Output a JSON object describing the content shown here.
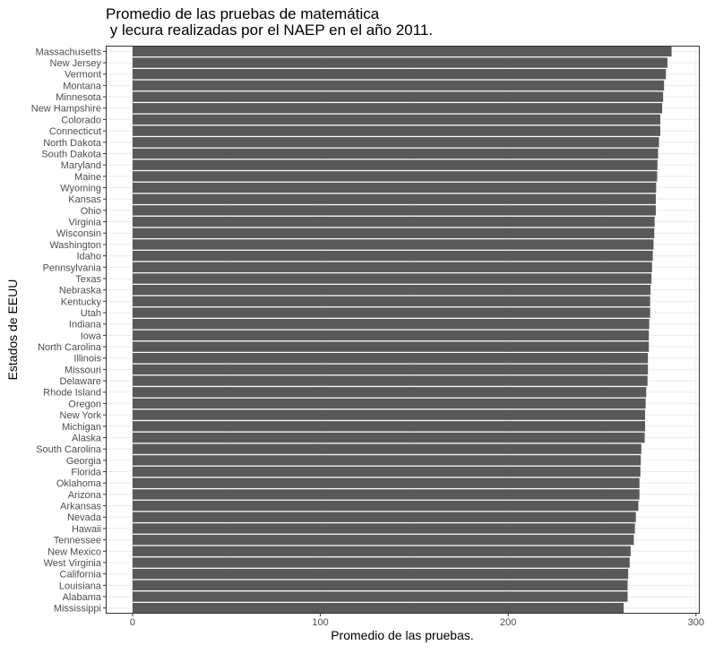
{
  "chart_data": {
    "type": "bar",
    "orientation": "horizontal",
    "title_lines": [
      "Promedio de las pruebas de matemática",
      " y lecura realizadas por el NAEP en el año 2011."
    ],
    "xlabel": "Promedio de las pruebas.",
    "ylabel": "Estados de EEUU",
    "xlim": [
      -14.3,
      302
    ],
    "xticks": [
      0,
      100,
      200,
      300
    ],
    "grid": true,
    "legend": "none",
    "bar_color": "#595959",
    "categories": [
      "Massachusetts",
      "New Jersey",
      "Vermont",
      "Montana",
      "Minnesota",
      "New Hampshire",
      "Colorado",
      "Connecticut",
      "North Dakota",
      "South Dakota",
      "Maryland",
      "Maine",
      "Wyoming",
      "Kansas",
      "Ohio",
      "Virginia",
      "Wisconsin",
      "Washington",
      "Idaho",
      "Pennsylvania",
      "Texas",
      "Nebraska",
      "Kentucky",
      "Utah",
      "Indiana",
      "Iowa",
      "North Carolina",
      "Illinois",
      "Missouri",
      "Delaware",
      "Rhode Island",
      "Oregon",
      "New York",
      "Michigan",
      "Alaska",
      "South Carolina",
      "Georgia",
      "Florida",
      "Oklahoma",
      "Arizona",
      "Arkansas",
      "Nevada",
      "Hawaii",
      "Tennessee",
      "New Mexico",
      "West Virginia",
      "California",
      "Louisiana",
      "Alabama",
      "Mississippi"
    ],
    "values": [
      287.0,
      284.8,
      284.0,
      283.0,
      282.5,
      282.0,
      281.0,
      281.0,
      280.3,
      279.8,
      279.5,
      279.3,
      278.8,
      278.6,
      278.6,
      278.0,
      277.8,
      277.4,
      277.0,
      276.6,
      276.3,
      275.8,
      275.6,
      275.6,
      275.1,
      274.9,
      274.9,
      274.4,
      274.4,
      274.2,
      273.5,
      273.2,
      272.9,
      272.9,
      272.7,
      270.9,
      270.6,
      270.4,
      269.9,
      269.9,
      269.3,
      268.0,
      267.5,
      266.9,
      265.2,
      264.7,
      263.9,
      263.6,
      263.6,
      261.5
    ]
  }
}
